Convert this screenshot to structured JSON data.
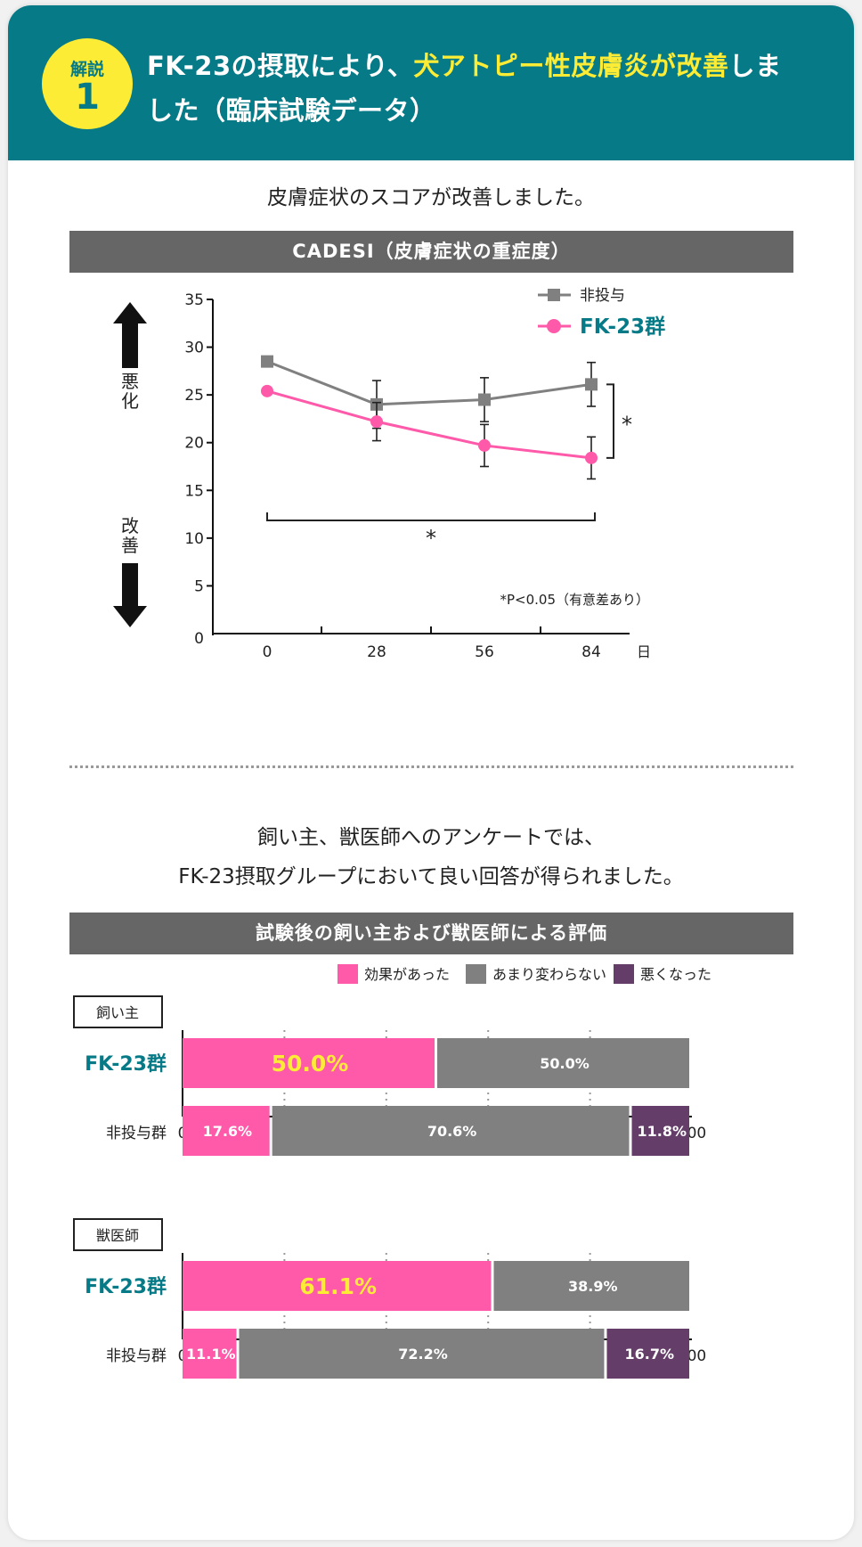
{
  "header": {
    "badge_label": "解説",
    "badge_number": "1",
    "title_part1": "FK-23の摂取により、",
    "title_highlight": "犬アトピー性皮膚炎が改善",
    "title_part2": "しました（臨床試験データ）"
  },
  "section1": {
    "subtitle": "皮膚症状のスコアが改善しました。",
    "bar_title": "CADESI（皮膚症状の重症度）",
    "worse_label": "悪化",
    "better_label": "改善",
    "significance_mark": "*",
    "significance_note": "*P<0.05（有意差あり）"
  },
  "section2": {
    "subtitle_line1": "飼い主、獣医師へのアンケートでは、",
    "subtitle_line2": "FK-23摂取グループにおいて良い回答が得られました。",
    "bar_title": "試験後の飼い主および獣医師による評価"
  },
  "colors": {
    "teal": "#067a86",
    "yellow": "#fcec35",
    "pink": "#ff59a9",
    "gray": "#808080",
    "purple": "#643e69"
  },
  "chart_data": [
    {
      "type": "line",
      "title": "CADESI（皮膚症状の重症度）",
      "x": [
        0,
        28,
        56,
        84
      ],
      "xlabel": "日",
      "xlim": [
        0,
        84
      ],
      "ylim": [
        0,
        35
      ],
      "yticks": [
        0,
        5,
        10,
        15,
        20,
        25,
        30,
        35
      ],
      "legend_position": "top-right",
      "series": [
        {
          "name": "非投与",
          "values": [
            28.5,
            24,
            24.5,
            26.1
          ],
          "error": [
            null,
            2.5,
            2.3,
            2.3
          ],
          "color": "#808080",
          "marker": "square"
        },
        {
          "name": "FK-23群",
          "values": [
            25.4,
            22.2,
            19.7,
            18.4
          ],
          "error": [
            null,
            2.0,
            2.2,
            2.2
          ],
          "color": "#ff59a9",
          "marker": "circle"
        }
      ]
    },
    {
      "type": "bar",
      "stacked": true,
      "orientation": "horizontal",
      "title": "飼い主",
      "categories": [
        "FK-23群",
        "非投与群"
      ],
      "xlim": [
        0,
        100
      ],
      "xticks": [
        0,
        20,
        40,
        60,
        80,
        100
      ],
      "legend_position": "top-right",
      "series": [
        {
          "name": "効果があった",
          "values": [
            50.0,
            17.6
          ],
          "labels": [
            "50.0%",
            "17.6%"
          ],
          "color": "#ff59a9"
        },
        {
          "name": "あまり変わらない",
          "values": [
            50.0,
            70.6
          ],
          "labels": [
            "50.0%",
            "70.6%"
          ],
          "color": "#808080"
        },
        {
          "name": "悪くなった",
          "values": [
            0,
            11.8
          ],
          "labels": [
            "",
            "11.8%"
          ],
          "color": "#643e69"
        }
      ]
    },
    {
      "type": "bar",
      "stacked": true,
      "orientation": "horizontal",
      "title": "獣医師",
      "categories": [
        "FK-23群",
        "非投与群"
      ],
      "xlim": [
        0,
        100
      ],
      "xticks": [
        0,
        20,
        40,
        60,
        80,
        100
      ],
      "series": [
        {
          "name": "効果があった",
          "values": [
            61.1,
            11.1
          ],
          "labels": [
            "61.1%",
            "11.1%"
          ],
          "color": "#ff59a9"
        },
        {
          "name": "あまり変わらない",
          "values": [
            38.9,
            72.2
          ],
          "labels": [
            "38.9%",
            "72.2%"
          ],
          "color": "#808080"
        },
        {
          "name": "悪くなった",
          "values": [
            0,
            16.7
          ],
          "labels": [
            "",
            "16.7%"
          ],
          "color": "#643e69"
        }
      ]
    }
  ]
}
